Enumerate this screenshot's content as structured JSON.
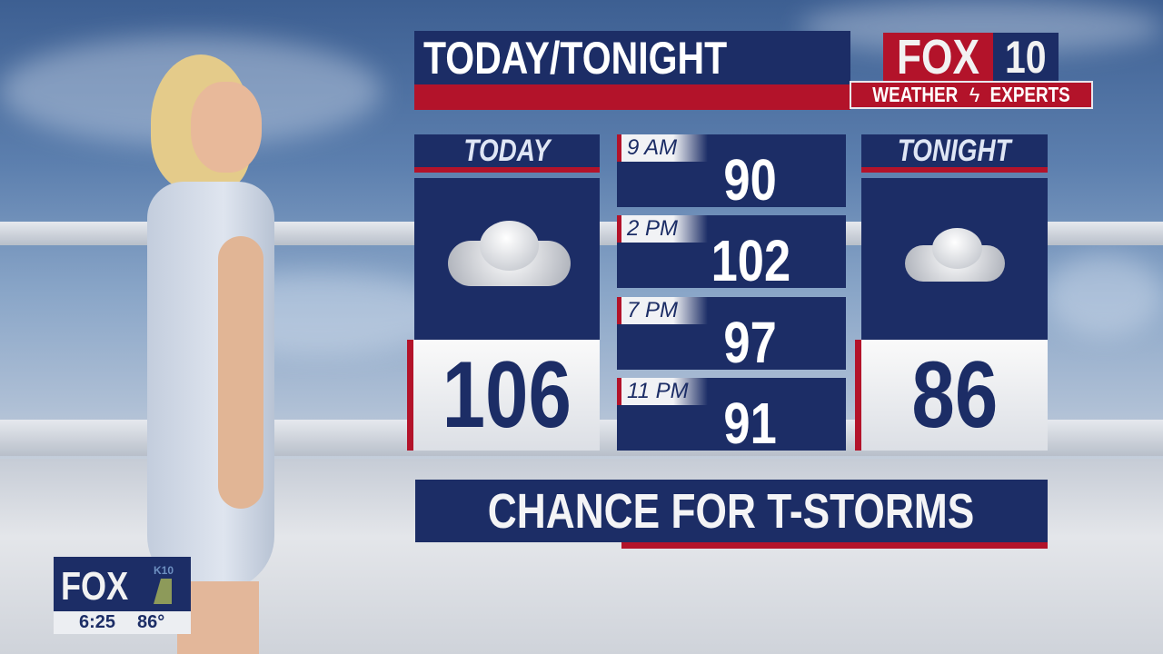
{
  "title": "TODAY/TONIGHT",
  "logo": {
    "brand": "FOX",
    "channel": "10",
    "tagline_left": "WEATHER",
    "tagline_right": "EXPERTS"
  },
  "today": {
    "label": "TODAY",
    "high": "106",
    "icon": "cloud-rain-icon"
  },
  "tonight": {
    "label": "TONIGHT",
    "low": "86",
    "icon": "cloud-rain-icon"
  },
  "hourly": [
    {
      "time": "9 AM",
      "temp": "90"
    },
    {
      "time": "2 PM",
      "temp": "102"
    },
    {
      "time": "7 PM",
      "temp": "97"
    },
    {
      "time": "11 PM",
      "temp": "91"
    }
  ],
  "banner": "CHANCE FOR T-STORMS",
  "bug": {
    "logo": "FOX",
    "sub": "K10",
    "time": "6:25",
    "temp": "86°"
  },
  "colors": {
    "navy": "#1c2d66",
    "red": "#b3132a"
  }
}
